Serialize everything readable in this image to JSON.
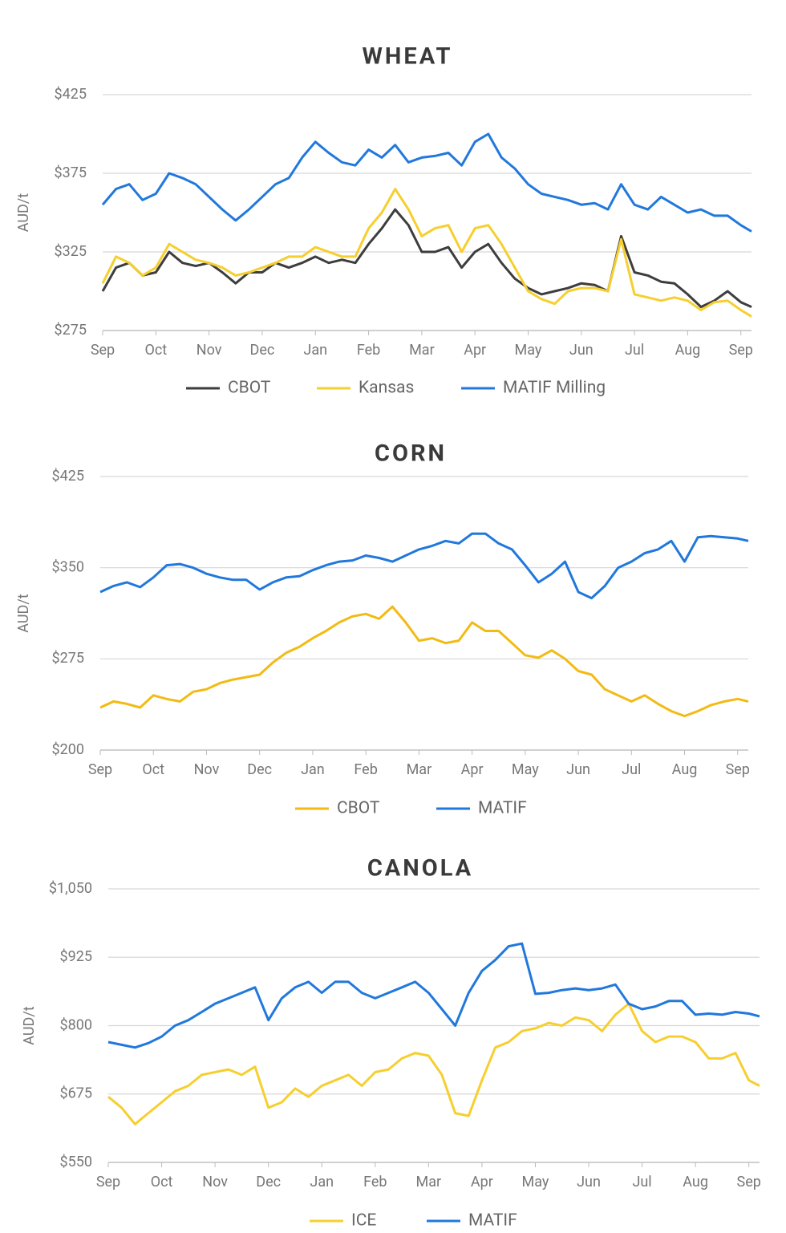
{
  "chart_data": [
    {
      "type": "line",
      "title": "WHEAT",
      "y_label": "AUD/t",
      "grid": true,
      "x": [
        0,
        0.25,
        0.5,
        0.75,
        1,
        1.25,
        1.5,
        1.75,
        2,
        2.25,
        2.5,
        2.75,
        3,
        3.25,
        3.5,
        3.75,
        4,
        4.25,
        4.5,
        4.75,
        5,
        5.25,
        5.5,
        5.75,
        6,
        6.25,
        6.5,
        6.75,
        7,
        7.25,
        7.5,
        7.75,
        8,
        8.25,
        8.5,
        8.75,
        9,
        9.25,
        9.5,
        9.75,
        10,
        10.25,
        10.5,
        10.75,
        11,
        11.25,
        11.5,
        11.75,
        12,
        12.2
      ],
      "xlim": [
        0,
        12.2
      ],
      "xticks": [
        {
          "value": 0,
          "label": "Sep"
        },
        {
          "value": 1,
          "label": "Oct"
        },
        {
          "value": 2,
          "label": "Nov"
        },
        {
          "value": 3,
          "label": "Dec"
        },
        {
          "value": 4,
          "label": "Jan"
        },
        {
          "value": 5,
          "label": "Feb"
        },
        {
          "value": 6,
          "label": "Mar"
        },
        {
          "value": 7,
          "label": "Apr"
        },
        {
          "value": 8,
          "label": "May"
        },
        {
          "value": 9,
          "label": "Jun"
        },
        {
          "value": 10,
          "label": "Jul"
        },
        {
          "value": 11,
          "label": "Aug"
        },
        {
          "value": 12,
          "label": "Sep"
        }
      ],
      "ylim": [
        275,
        425
      ],
      "yticks": [
        {
          "value": 275,
          "label": "$275"
        },
        {
          "value": 325,
          "label": "$325"
        },
        {
          "value": 375,
          "label": "$375"
        },
        {
          "value": 425,
          "label": "$425"
        }
      ],
      "series": [
        {
          "name": "CBOT",
          "color": "#3d3d3d",
          "values": [
            300,
            315,
            318,
            310,
            312,
            325,
            318,
            316,
            318,
            312,
            305,
            312,
            312,
            318,
            315,
            318,
            322,
            318,
            320,
            318,
            330,
            340,
            352,
            342,
            325,
            325,
            328,
            315,
            325,
            330,
            318,
            308,
            302,
            298,
            300,
            302,
            305,
            304,
            300,
            335,
            312,
            310,
            306,
            305,
            298,
            290,
            294,
            300,
            293,
            290
          ]
        },
        {
          "name": "Kansas",
          "color": "#f6cf2f",
          "values": [
            305,
            322,
            318,
            310,
            315,
            330,
            325,
            320,
            318,
            315,
            310,
            312,
            315,
            318,
            322,
            322,
            328,
            325,
            322,
            322,
            340,
            350,
            365,
            352,
            335,
            340,
            342,
            325,
            340,
            342,
            330,
            315,
            300,
            295,
            292,
            300,
            302,
            302,
            300,
            333,
            298,
            296,
            294,
            296,
            294,
            288,
            293,
            294,
            288,
            284
          ]
        },
        {
          "name": "MATIF Milling",
          "color": "#2178dc",
          "values": [
            355,
            365,
            368,
            358,
            362,
            375,
            372,
            368,
            360,
            352,
            345,
            352,
            360,
            368,
            372,
            385,
            395,
            388,
            382,
            380,
            390,
            385,
            393,
            382,
            385,
            386,
            388,
            380,
            395,
            400,
            385,
            378,
            368,
            362,
            360,
            358,
            355,
            356,
            352,
            368,
            355,
            352,
            360,
            355,
            350,
            352,
            348,
            348,
            342,
            338
          ]
        }
      ]
    },
    {
      "type": "line",
      "title": "CORN",
      "y_label": "AUD/t",
      "grid": true,
      "x": [
        0,
        0.25,
        0.5,
        0.75,
        1,
        1.25,
        1.5,
        1.75,
        2,
        2.25,
        2.5,
        2.75,
        3,
        3.25,
        3.5,
        3.75,
        4,
        4.25,
        4.5,
        4.75,
        5,
        5.25,
        5.5,
        5.75,
        6,
        6.25,
        6.5,
        6.75,
        7,
        7.25,
        7.5,
        7.75,
        8,
        8.25,
        8.5,
        8.75,
        9,
        9.25,
        9.5,
        9.75,
        10,
        10.25,
        10.5,
        10.75,
        11,
        11.25,
        11.5,
        11.75,
        12,
        12.2
      ],
      "xlim": [
        0,
        12.2
      ],
      "xticks": [
        {
          "value": 0,
          "label": "Sep"
        },
        {
          "value": 1,
          "label": "Oct"
        },
        {
          "value": 2,
          "label": "Nov"
        },
        {
          "value": 3,
          "label": "Dec"
        },
        {
          "value": 4,
          "label": "Jan"
        },
        {
          "value": 5,
          "label": "Feb"
        },
        {
          "value": 6,
          "label": "Mar"
        },
        {
          "value": 7,
          "label": "Apr"
        },
        {
          "value": 8,
          "label": "May"
        },
        {
          "value": 9,
          "label": "Jun"
        },
        {
          "value": 10,
          "label": "Jul"
        },
        {
          "value": 11,
          "label": "Aug"
        },
        {
          "value": 12,
          "label": "Sep"
        }
      ],
      "ylim": [
        200,
        425
      ],
      "yticks": [
        {
          "value": 200,
          "label": "$200"
        },
        {
          "value": 275,
          "label": "$275"
        },
        {
          "value": 350,
          "label": "$350"
        },
        {
          "value": 425,
          "label": "$425"
        }
      ],
      "series": [
        {
          "name": "CBOT",
          "color": "#f2bb13",
          "values": [
            235,
            240,
            238,
            235,
            245,
            242,
            240,
            248,
            250,
            255,
            258,
            260,
            262,
            272,
            280,
            285,
            292,
            298,
            305,
            310,
            312,
            308,
            318,
            305,
            290,
            292,
            288,
            290,
            305,
            298,
            298,
            288,
            278,
            276,
            282,
            275,
            265,
            262,
            250,
            245,
            240,
            245,
            238,
            232,
            228,
            232,
            237,
            240,
            242,
            240
          ]
        },
        {
          "name": "MATIF",
          "color": "#2178dc",
          "values": [
            330,
            335,
            338,
            334,
            342,
            352,
            353,
            350,
            345,
            342,
            340,
            340,
            332,
            338,
            342,
            343,
            348,
            352,
            355,
            356,
            360,
            358,
            355,
            360,
            365,
            368,
            372,
            370,
            378,
            378,
            370,
            365,
            352,
            338,
            345,
            355,
            330,
            325,
            335,
            350,
            355,
            362,
            365,
            372,
            355,
            375,
            376,
            375,
            374,
            372
          ]
        }
      ]
    },
    {
      "type": "line",
      "title": "CANOLA",
      "y_label": "AUD/t",
      "grid": true,
      "x": [
        0,
        0.25,
        0.5,
        0.75,
        1,
        1.25,
        1.5,
        1.75,
        2,
        2.25,
        2.5,
        2.75,
        3,
        3.25,
        3.5,
        3.75,
        4,
        4.25,
        4.5,
        4.75,
        5,
        5.25,
        5.5,
        5.75,
        6,
        6.25,
        6.5,
        6.75,
        7,
        7.25,
        7.5,
        7.75,
        8,
        8.25,
        8.5,
        8.75,
        9,
        9.25,
        9.5,
        9.75,
        10,
        10.25,
        10.5,
        10.75,
        11,
        11.25,
        11.5,
        11.75,
        12,
        12.2
      ],
      "xlim": [
        0,
        12.2
      ],
      "xticks": [
        {
          "value": 0,
          "label": "Sep"
        },
        {
          "value": 1,
          "label": "Oct"
        },
        {
          "value": 2,
          "label": "Nov"
        },
        {
          "value": 3,
          "label": "Dec"
        },
        {
          "value": 4,
          "label": "Jan"
        },
        {
          "value": 5,
          "label": "Feb"
        },
        {
          "value": 6,
          "label": "Mar"
        },
        {
          "value": 7,
          "label": "Apr"
        },
        {
          "value": 8,
          "label": "May"
        },
        {
          "value": 9,
          "label": "Jun"
        },
        {
          "value": 10,
          "label": "Jul"
        },
        {
          "value": 11,
          "label": "Aug"
        },
        {
          "value": 12,
          "label": "Sep"
        }
      ],
      "ylim": [
        550,
        1050
      ],
      "yticks": [
        {
          "value": 550,
          "label": "$550"
        },
        {
          "value": 675,
          "label": "$675"
        },
        {
          "value": 800,
          "label": "$800"
        },
        {
          "value": 925,
          "label": "$925"
        },
        {
          "value": 1050,
          "label": "$1,050"
        }
      ],
      "series": [
        {
          "name": "ICE",
          "color": "#f6cf2f",
          "values": [
            670,
            650,
            620,
            640,
            660,
            680,
            690,
            710,
            715,
            720,
            710,
            725,
            650,
            660,
            685,
            670,
            690,
            700,
            710,
            690,
            715,
            720,
            740,
            750,
            745,
            710,
            640,
            635,
            700,
            760,
            770,
            790,
            795,
            805,
            800,
            815,
            810,
            790,
            820,
            840,
            790,
            770,
            780,
            780,
            770,
            740,
            740,
            750,
            700,
            690
          ]
        },
        {
          "name": "MATIF",
          "color": "#2178dc",
          "values": [
            770,
            765,
            760,
            768,
            780,
            800,
            810,
            825,
            840,
            850,
            860,
            870,
            810,
            850,
            870,
            880,
            860,
            880,
            880,
            860,
            850,
            860,
            870,
            880,
            860,
            830,
            800,
            860,
            900,
            920,
            945,
            950,
            858,
            860,
            865,
            868,
            865,
            868,
            875,
            840,
            830,
            835,
            845,
            845,
            820,
            822,
            820,
            825,
            822,
            817
          ]
        }
      ]
    }
  ]
}
